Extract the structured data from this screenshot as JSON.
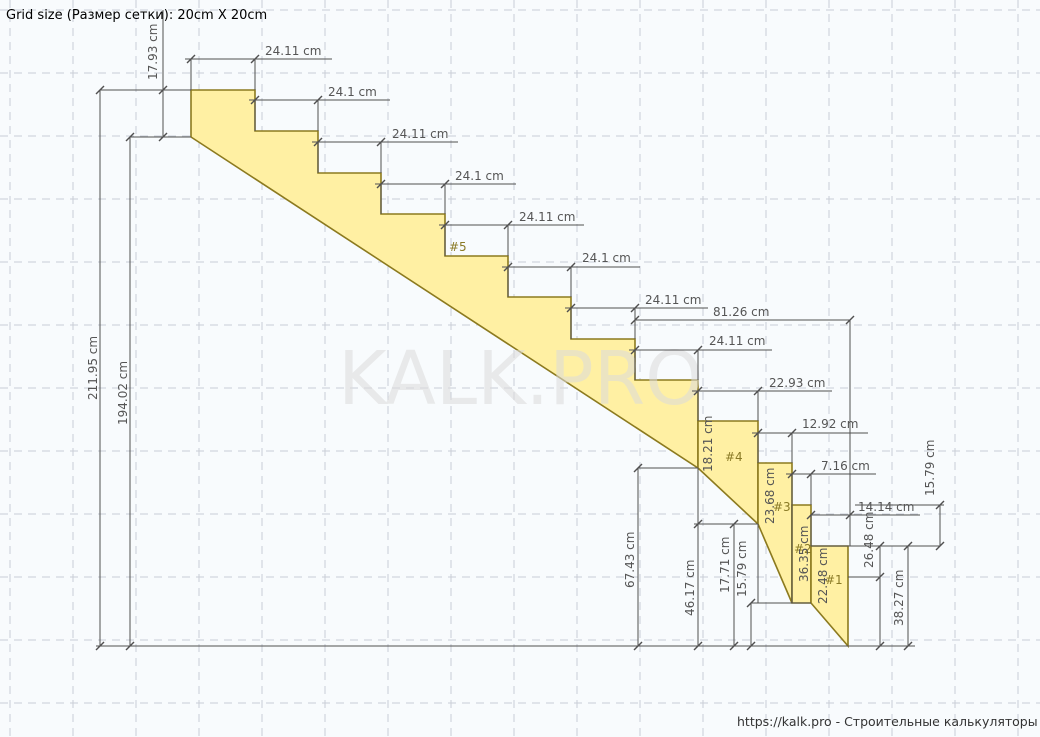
{
  "header": {
    "grid_size_label": "Grid size (Размер сетки): 20cm X 20cm"
  },
  "watermark": "KALK.PRO",
  "footer": "https://kalk.pro - Строительные калькуляторы",
  "colors": {
    "fill": "#fff0a3",
    "outline": "#8c7a1f",
    "dimension": "#505050",
    "grid": "#c9ced6"
  },
  "sections": [
    "#5",
    "#4",
    "#3",
    "#2",
    "#1"
  ],
  "dimensions": {
    "tread_top": [
      "24.11 cm",
      "24.1 cm",
      "24.11 cm",
      "24.1 cm",
      "24.11 cm",
      "24.1 cm",
      "24.11 cm",
      "24.11 cm"
    ],
    "winder_run_total": "81.26 cm",
    "winder_treads": [
      "22.93 cm",
      "12.92 cm",
      "7.16 cm",
      "14.14 cm"
    ],
    "first_rise": "17.93 cm",
    "total_height": "211.95 cm",
    "upper_flight_height": "194.02 cm",
    "height_67": "67.43 cm",
    "height_46": "46.17 cm",
    "height_17": "17.71 cm",
    "height_15": "15.79 cm",
    "height_38": "38.27 cm",
    "step_heights": [
      "18.21 cm",
      "23.68 cm",
      "36.35 cm",
      "22.48 cm",
      "26.48 cm",
      "15.79 cm"
    ]
  }
}
